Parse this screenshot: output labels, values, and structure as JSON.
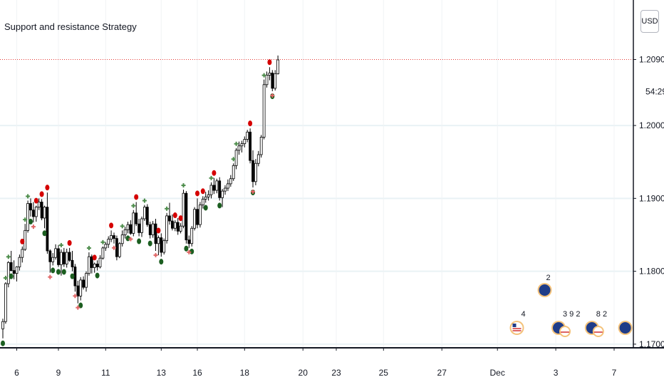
{
  "chart_data": {
    "type": "candlestick",
    "title": "Support and resistance Strategy",
    "currency": "USD",
    "last_price": "1.20905",
    "countdown": "54:29",
    "y_ticks": [
      1.17,
      1.18,
      1.19,
      1.2
    ],
    "y_tick_labels": [
      "1.17000",
      "1.18000",
      "1.19000",
      "1.20000"
    ],
    "ylim": [
      1.1695,
      1.2135
    ],
    "x_ticks": [
      {
        "label": "6",
        "bar": 5
      },
      {
        "label": "9",
        "bar": 20
      },
      {
        "label": "11",
        "bar": 37
      },
      {
        "label": "13",
        "bar": 57
      },
      {
        "label": "16",
        "bar": 70
      },
      {
        "label": "18",
        "bar": 87
      },
      {
        "label": "20",
        "bar": 108
      },
      {
        "label": "23",
        "bar": 120
      },
      {
        "label": "25",
        "bar": 137
      },
      {
        "label": "27",
        "bar": 158
      },
      {
        "label": "Dec",
        "bar": 178
      },
      {
        "label": "3",
        "bar": 199
      },
      {
        "label": "7",
        "bar": 220
      }
    ],
    "grid": true,
    "colors": {
      "bull_body": "#ffffff",
      "bear_body": "#000000",
      "wick": "#000000",
      "grid": "#e9f2f5",
      "sell_signal": "#d50000",
      "buy_signal": "#1b5e20",
      "plus_up": "#4c8c4a",
      "plus_down": "#e06666",
      "price_line": "#e53935"
    },
    "candles": [
      [
        1.1721,
        1.1735,
        1.1708,
        1.1731
      ],
      [
        1.1731,
        1.1785,
        1.1728,
        1.1783
      ],
      [
        1.1783,
        1.1814,
        1.1778,
        1.1812
      ],
      [
        1.1812,
        1.1828,
        1.18,
        1.1801
      ],
      [
        1.1801,
        1.1815,
        1.1789,
        1.1797
      ],
      [
        1.1797,
        1.1807,
        1.1786,
        1.1806
      ],
      [
        1.1806,
        1.1823,
        1.1801,
        1.1819
      ],
      [
        1.1819,
        1.1834,
        1.1812,
        1.183
      ],
      [
        1.183,
        1.1865,
        1.1828,
        1.1856
      ],
      [
        1.1856,
        1.1897,
        1.1853,
        1.1893
      ],
      [
        1.1893,
        1.19,
        1.1875,
        1.1884
      ],
      [
        1.1884,
        1.1895,
        1.1867,
        1.1875
      ],
      [
        1.1875,
        1.189,
        1.1868,
        1.1888
      ],
      [
        1.1888,
        1.19,
        1.1884,
        1.1895
      ],
      [
        1.1895,
        1.1899,
        1.187,
        1.1873
      ],
      [
        1.1873,
        1.189,
        1.1859,
        1.1888
      ],
      [
        1.1888,
        1.1908,
        1.1824,
        1.1828
      ],
      [
        1.1828,
        1.183,
        1.1798,
        1.1813
      ],
      [
        1.1813,
        1.1825,
        1.1808,
        1.1819
      ],
      [
        1.1819,
        1.1837,
        1.1816,
        1.1831
      ],
      [
        1.1831,
        1.1836,
        1.1806,
        1.1809
      ],
      [
        1.1809,
        1.183,
        1.1794,
        1.1826
      ],
      [
        1.1826,
        1.1832,
        1.1806,
        1.181
      ],
      [
        1.181,
        1.1831,
        1.1805,
        1.1826
      ],
      [
        1.1826,
        1.1832,
        1.1813,
        1.1815
      ],
      [
        1.1815,
        1.1828,
        1.18,
        1.1806
      ],
      [
        1.1806,
        1.181,
        1.1772,
        1.178
      ],
      [
        1.178,
        1.1787,
        1.1756,
        1.1766
      ],
      [
        1.1766,
        1.1792,
        1.176,
        1.1788
      ],
      [
        1.1788,
        1.1793,
        1.1775,
        1.1778
      ],
      [
        1.1778,
        1.18,
        1.1772,
        1.1797
      ],
      [
        1.1797,
        1.1826,
        1.1794,
        1.182
      ],
      [
        1.182,
        1.1823,
        1.1797,
        1.1805
      ],
      [
        1.1805,
        1.1812,
        1.1798,
        1.181
      ],
      [
        1.181,
        1.1815,
        1.1801,
        1.1806
      ],
      [
        1.1806,
        1.1822,
        1.1804,
        1.1818
      ],
      [
        1.1818,
        1.1834,
        1.1816,
        1.1832
      ],
      [
        1.1832,
        1.184,
        1.1828,
        1.1837
      ],
      [
        1.1837,
        1.1848,
        1.1832,
        1.1844
      ],
      [
        1.1844,
        1.1856,
        1.184,
        1.1849
      ],
      [
        1.1849,
        1.1853,
        1.1838,
        1.1845
      ],
      [
        1.1845,
        1.1849,
        1.1815,
        1.182
      ],
      [
        1.182,
        1.184,
        1.1818,
        1.1838
      ],
      [
        1.1838,
        1.1856,
        1.1834,
        1.185
      ],
      [
        1.185,
        1.1861,
        1.1845,
        1.1857
      ],
      [
        1.1857,
        1.1868,
        1.1852,
        1.1864
      ],
      [
        1.1864,
        1.187,
        1.185,
        1.1852
      ],
      [
        1.1852,
        1.1884,
        1.1848,
        1.188
      ],
      [
        1.188,
        1.1895,
        1.1862,
        1.1865
      ],
      [
        1.1865,
        1.1872,
        1.1848,
        1.1853
      ],
      [
        1.1853,
        1.1875,
        1.1847,
        1.1872
      ],
      [
        1.1872,
        1.1891,
        1.1869,
        1.1888
      ],
      [
        1.1888,
        1.1892,
        1.1861,
        1.1864
      ],
      [
        1.1864,
        1.1868,
        1.1845,
        1.185
      ],
      [
        1.185,
        1.1869,
        1.1846,
        1.1865
      ],
      [
        1.1865,
        1.1872,
        1.1828,
        1.1838
      ],
      [
        1.1838,
        1.1849,
        1.1822,
        1.1846
      ],
      [
        1.1846,
        1.1852,
        1.182,
        1.1826
      ],
      [
        1.1826,
        1.1845,
        1.1823,
        1.1842
      ],
      [
        1.1842,
        1.188,
        1.1838,
        1.1876
      ],
      [
        1.1876,
        1.1894,
        1.1864,
        1.1869
      ],
      [
        1.1869,
        1.1878,
        1.1856,
        1.1859
      ],
      [
        1.1859,
        1.187,
        1.1855,
        1.1867
      ],
      [
        1.1867,
        1.1873,
        1.185,
        1.1855
      ],
      [
        1.1855,
        1.1866,
        1.1852,
        1.1862
      ],
      [
        1.1862,
        1.1912,
        1.1859,
        1.1907
      ],
      [
        1.1907,
        1.191,
        1.1838,
        1.1843
      ],
      [
        1.1843,
        1.1849,
        1.1832,
        1.1838
      ],
      [
        1.1838,
        1.1862,
        1.1834,
        1.1859
      ],
      [
        1.1859,
        1.1888,
        1.1856,
        1.1885
      ],
      [
        1.1885,
        1.19,
        1.1859,
        1.1864
      ],
      [
        1.1864,
        1.1895,
        1.186,
        1.1891
      ],
      [
        1.1891,
        1.1903,
        1.1886,
        1.1899
      ],
      [
        1.1899,
        1.1909,
        1.1894,
        1.1902
      ],
      [
        1.1902,
        1.1911,
        1.1897,
        1.1905
      ],
      [
        1.1905,
        1.1922,
        1.19,
        1.1918
      ],
      [
        1.1918,
        1.1928,
        1.1906,
        1.1911
      ],
      [
        1.1911,
        1.1927,
        1.1907,
        1.1924
      ],
      [
        1.1924,
        1.1929,
        1.1897,
        1.1901
      ],
      [
        1.1901,
        1.1913,
        1.1888,
        1.191
      ],
      [
        1.191,
        1.1918,
        1.1905,
        1.1914
      ],
      [
        1.1914,
        1.1926,
        1.191,
        1.192
      ],
      [
        1.192,
        1.1932,
        1.1916,
        1.1927
      ],
      [
        1.1927,
        1.1948,
        1.1924,
        1.1945
      ],
      [
        1.1945,
        1.1969,
        1.194,
        1.1966
      ],
      [
        1.1966,
        1.1978,
        1.196,
        1.1972
      ],
      [
        1.1972,
        1.1979,
        1.1963,
        1.1975
      ],
      [
        1.1975,
        1.1985,
        1.197,
        1.1981
      ],
      [
        1.1981,
        1.1994,
        1.1977,
        1.1991
      ],
      [
        1.1991,
        1.1996,
        1.1948,
        1.1952
      ],
      [
        1.1952,
        1.1966,
        1.1915,
        1.1923
      ],
      [
        1.1923,
        1.1954,
        1.1918,
        1.1948
      ],
      [
        1.1948,
        1.1965,
        1.1944,
        1.196
      ],
      [
        1.196,
        1.1987,
        1.1956,
        1.1984
      ],
      [
        1.1984,
        1.2063,
        1.1981,
        1.2056
      ],
      [
        1.2056,
        1.2074,
        1.2052,
        1.2069
      ],
      [
        1.2069,
        1.208,
        1.2062,
        1.2072
      ],
      [
        1.2072,
        1.2076,
        1.2047,
        1.2051
      ],
      [
        1.2051,
        1.2076,
        1.2048,
        1.2071
      ],
      [
        1.2071,
        1.2096,
        1.207,
        1.209
      ]
    ],
    "signals": [
      {
        "bar": 0,
        "type": "buy"
      },
      {
        "bar": 3,
        "type": "buy"
      },
      {
        "bar": 7,
        "type": "sell"
      },
      {
        "bar": 10,
        "type": "buy"
      },
      {
        "bar": 12,
        "type": "sell"
      },
      {
        "bar": 14,
        "type": "sell"
      },
      {
        "bar": 15,
        "type": "buy"
      },
      {
        "bar": 16,
        "type": "sell"
      },
      {
        "bar": 18,
        "type": "buy"
      },
      {
        "bar": 20,
        "type": "buy"
      },
      {
        "bar": 22,
        "type": "buy"
      },
      {
        "bar": 24,
        "type": "sell"
      },
      {
        "bar": 25,
        "type": "buy"
      },
      {
        "bar": 28,
        "type": "buy"
      },
      {
        "bar": 33,
        "type": "sell"
      },
      {
        "bar": 34,
        "type": "buy"
      },
      {
        "bar": 39,
        "type": "sell"
      },
      {
        "bar": 45,
        "type": "buy"
      },
      {
        "bar": 48,
        "type": "sell"
      },
      {
        "bar": 49,
        "type": "buy"
      },
      {
        "bar": 53,
        "type": "buy"
      },
      {
        "bar": 56,
        "type": "sell"
      },
      {
        "bar": 57,
        "type": "buy"
      },
      {
        "bar": 62,
        "type": "sell"
      },
      {
        "bar": 64,
        "type": "sell"
      },
      {
        "bar": 66,
        "type": "buy"
      },
      {
        "bar": 68,
        "type": "buy"
      },
      {
        "bar": 70,
        "type": "sell"
      },
      {
        "bar": 72,
        "type": "sell"
      },
      {
        "bar": 73,
        "type": "buy"
      },
      {
        "bar": 76,
        "type": "sell"
      },
      {
        "bar": 78,
        "type": "buy"
      },
      {
        "bar": 89,
        "type": "sell"
      },
      {
        "bar": 90,
        "type": "buy"
      },
      {
        "bar": 96,
        "type": "sell"
      },
      {
        "bar": 97,
        "type": "buy"
      }
    ],
    "plus_markers": [
      {
        "bar": 1,
        "dir": "up"
      },
      {
        "bar": 2,
        "dir": "up"
      },
      {
        "bar": 8,
        "dir": "up"
      },
      {
        "bar": 9,
        "dir": "up"
      },
      {
        "bar": 11,
        "dir": "down"
      },
      {
        "bar": 17,
        "dir": "down"
      },
      {
        "bar": 21,
        "dir": "up"
      },
      {
        "bar": 26,
        "dir": "down"
      },
      {
        "bar": 27,
        "dir": "down"
      },
      {
        "bar": 31,
        "dir": "up"
      },
      {
        "bar": 36,
        "dir": "up"
      },
      {
        "bar": 40,
        "dir": "down"
      },
      {
        "bar": 43,
        "dir": "up"
      },
      {
        "bar": 46,
        "dir": "down"
      },
      {
        "bar": 47,
        "dir": "up"
      },
      {
        "bar": 51,
        "dir": "up"
      },
      {
        "bar": 55,
        "dir": "down"
      },
      {
        "bar": 59,
        "dir": "up"
      },
      {
        "bar": 65,
        "dir": "up"
      },
      {
        "bar": 67,
        "dir": "down"
      },
      {
        "bar": 75,
        "dir": "up"
      },
      {
        "bar": 83,
        "dir": "up"
      },
      {
        "bar": 84,
        "dir": "up"
      },
      {
        "bar": 90,
        "dir": "down"
      },
      {
        "bar": 94,
        "dir": "up"
      },
      {
        "bar": 97,
        "dir": "down"
      },
      {
        "bar": 100,
        "dir": "up"
      }
    ],
    "event_badges": [
      {
        "label": "2",
        "kind": "eu",
        "bar": 195,
        "row": "upper"
      },
      {
        "label": "4",
        "kind": "us",
        "bar": 185,
        "row": "lower"
      },
      {
        "label": "3 9 2",
        "kind": "mixed",
        "bar": 200,
        "row": "lower"
      },
      {
        "label": "8 2",
        "kind": "mixed",
        "bar": 212,
        "row": "lower"
      },
      {
        "label": "",
        "kind": "eu",
        "bar": 224,
        "row": "lower"
      }
    ]
  }
}
